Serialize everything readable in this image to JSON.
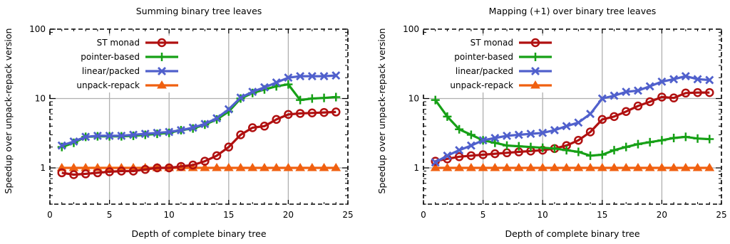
{
  "chart_data": [
    {
      "type": "line",
      "title": "Summing binary tree leaves",
      "xlabel": "Depth of complete binary tree",
      "ylabel": "Speedup over unpack-repack version",
      "xlim": [
        0,
        25
      ],
      "ylim": [
        0.3,
        100
      ],
      "yscale": "log",
      "xticks": [
        "0",
        "5",
        "10",
        "15",
        "20",
        "25"
      ],
      "yticks": [
        "1",
        "10",
        "100"
      ],
      "grid": true,
      "legend_position": "top-left",
      "x": [
        1,
        2,
        3,
        4,
        5,
        6,
        7,
        8,
        9,
        10,
        11,
        12,
        13,
        14,
        15,
        16,
        17,
        18,
        19,
        20,
        21,
        22,
        23,
        24
      ],
      "series": [
        {
          "name": "ST monad",
          "color": "#b01010",
          "marker": "circle",
          "values": [
            0.85,
            0.8,
            0.82,
            0.85,
            0.88,
            0.9,
            0.9,
            0.95,
            1.0,
            1.0,
            1.05,
            1.1,
            1.25,
            1.5,
            2.0,
            3.0,
            3.8,
            4.0,
            5.0,
            5.9,
            6.1,
            6.2,
            6.3,
            6.4
          ]
        },
        {
          "name": "pointer-based",
          "color": "#16a016",
          "marker": "plus",
          "values": [
            2.0,
            2.3,
            2.8,
            2.85,
            2.85,
            2.85,
            2.9,
            3.0,
            3.1,
            3.2,
            3.5,
            3.7,
            4.2,
            5.0,
            6.5,
            10.0,
            12.0,
            13.5,
            15.0,
            16.0,
            9.5,
            10.0,
            10.2,
            10.5
          ]
        },
        {
          "name": "linear/packed",
          "color": "#5060cc",
          "marker": "x",
          "values": [
            2.1,
            2.4,
            2.8,
            2.9,
            2.9,
            2.9,
            3.0,
            3.1,
            3.2,
            3.3,
            3.5,
            3.8,
            4.3,
            5.2,
            7.0,
            10.3,
            12.5,
            14.5,
            17.0,
            20.0,
            21.0,
            21.0,
            21.0,
            21.5
          ]
        },
        {
          "name": "unpack-repack",
          "color": "#f06010",
          "marker": "triangle",
          "values": [
            1,
            1,
            1,
            1,
            1,
            1,
            1,
            1,
            1,
            1,
            1,
            1,
            1,
            1,
            1,
            1,
            1,
            1,
            1,
            1,
            1,
            1,
            1,
            1
          ]
        }
      ]
    },
    {
      "type": "line",
      "title": "Mapping (+1) over binary tree leaves",
      "xlabel": "Depth of complete binary tree",
      "ylabel": "Speedup over unpack-repack version",
      "xlim": [
        0,
        25
      ],
      "ylim": [
        0.3,
        100
      ],
      "yscale": "log",
      "xticks": [
        "0",
        "5",
        "10",
        "15",
        "20",
        "25"
      ],
      "yticks": [
        "1",
        "10",
        "100"
      ],
      "grid": true,
      "legend_position": "top-left",
      "x": [
        1,
        2,
        3,
        4,
        5,
        6,
        7,
        8,
        9,
        10,
        11,
        12,
        13,
        14,
        15,
        16,
        17,
        18,
        19,
        20,
        21,
        22,
        23,
        24
      ],
      "series": [
        {
          "name": "ST monad",
          "color": "#b01010",
          "marker": "circle",
          "values": [
            1.25,
            1.35,
            1.45,
            1.5,
            1.55,
            1.6,
            1.65,
            1.7,
            1.75,
            1.8,
            1.9,
            2.1,
            2.5,
            3.3,
            5.0,
            5.5,
            6.5,
            7.8,
            9.0,
            10.5,
            10.2,
            12.0,
            12.2,
            12.2
          ]
        },
        {
          "name": "pointer-based",
          "color": "#16a016",
          "marker": "plus",
          "values": [
            9.5,
            5.5,
            3.6,
            3.0,
            2.5,
            2.3,
            2.1,
            2.05,
            2.0,
            1.95,
            1.9,
            1.8,
            1.7,
            1.5,
            1.55,
            1.8,
            2.0,
            2.2,
            2.35,
            2.5,
            2.7,
            2.8,
            2.65,
            2.6
          ]
        },
        {
          "name": "linear/packed",
          "color": "#5060cc",
          "marker": "x",
          "values": [
            1.2,
            1.5,
            1.8,
            2.1,
            2.5,
            2.7,
            2.9,
            3.0,
            3.1,
            3.2,
            3.5,
            4.0,
            4.5,
            6.0,
            10.0,
            11.0,
            12.5,
            13.0,
            15.0,
            17.5,
            19.0,
            21.0,
            19.0,
            18.5
          ]
        },
        {
          "name": "unpack-repack",
          "color": "#f06010",
          "marker": "triangle",
          "values": [
            1,
            1,
            1,
            1,
            1,
            1,
            1,
            1,
            1,
            1,
            1,
            1,
            1,
            1,
            1,
            1,
            1,
            1,
            1,
            1,
            1,
            1,
            1,
            1
          ]
        }
      ]
    }
  ]
}
